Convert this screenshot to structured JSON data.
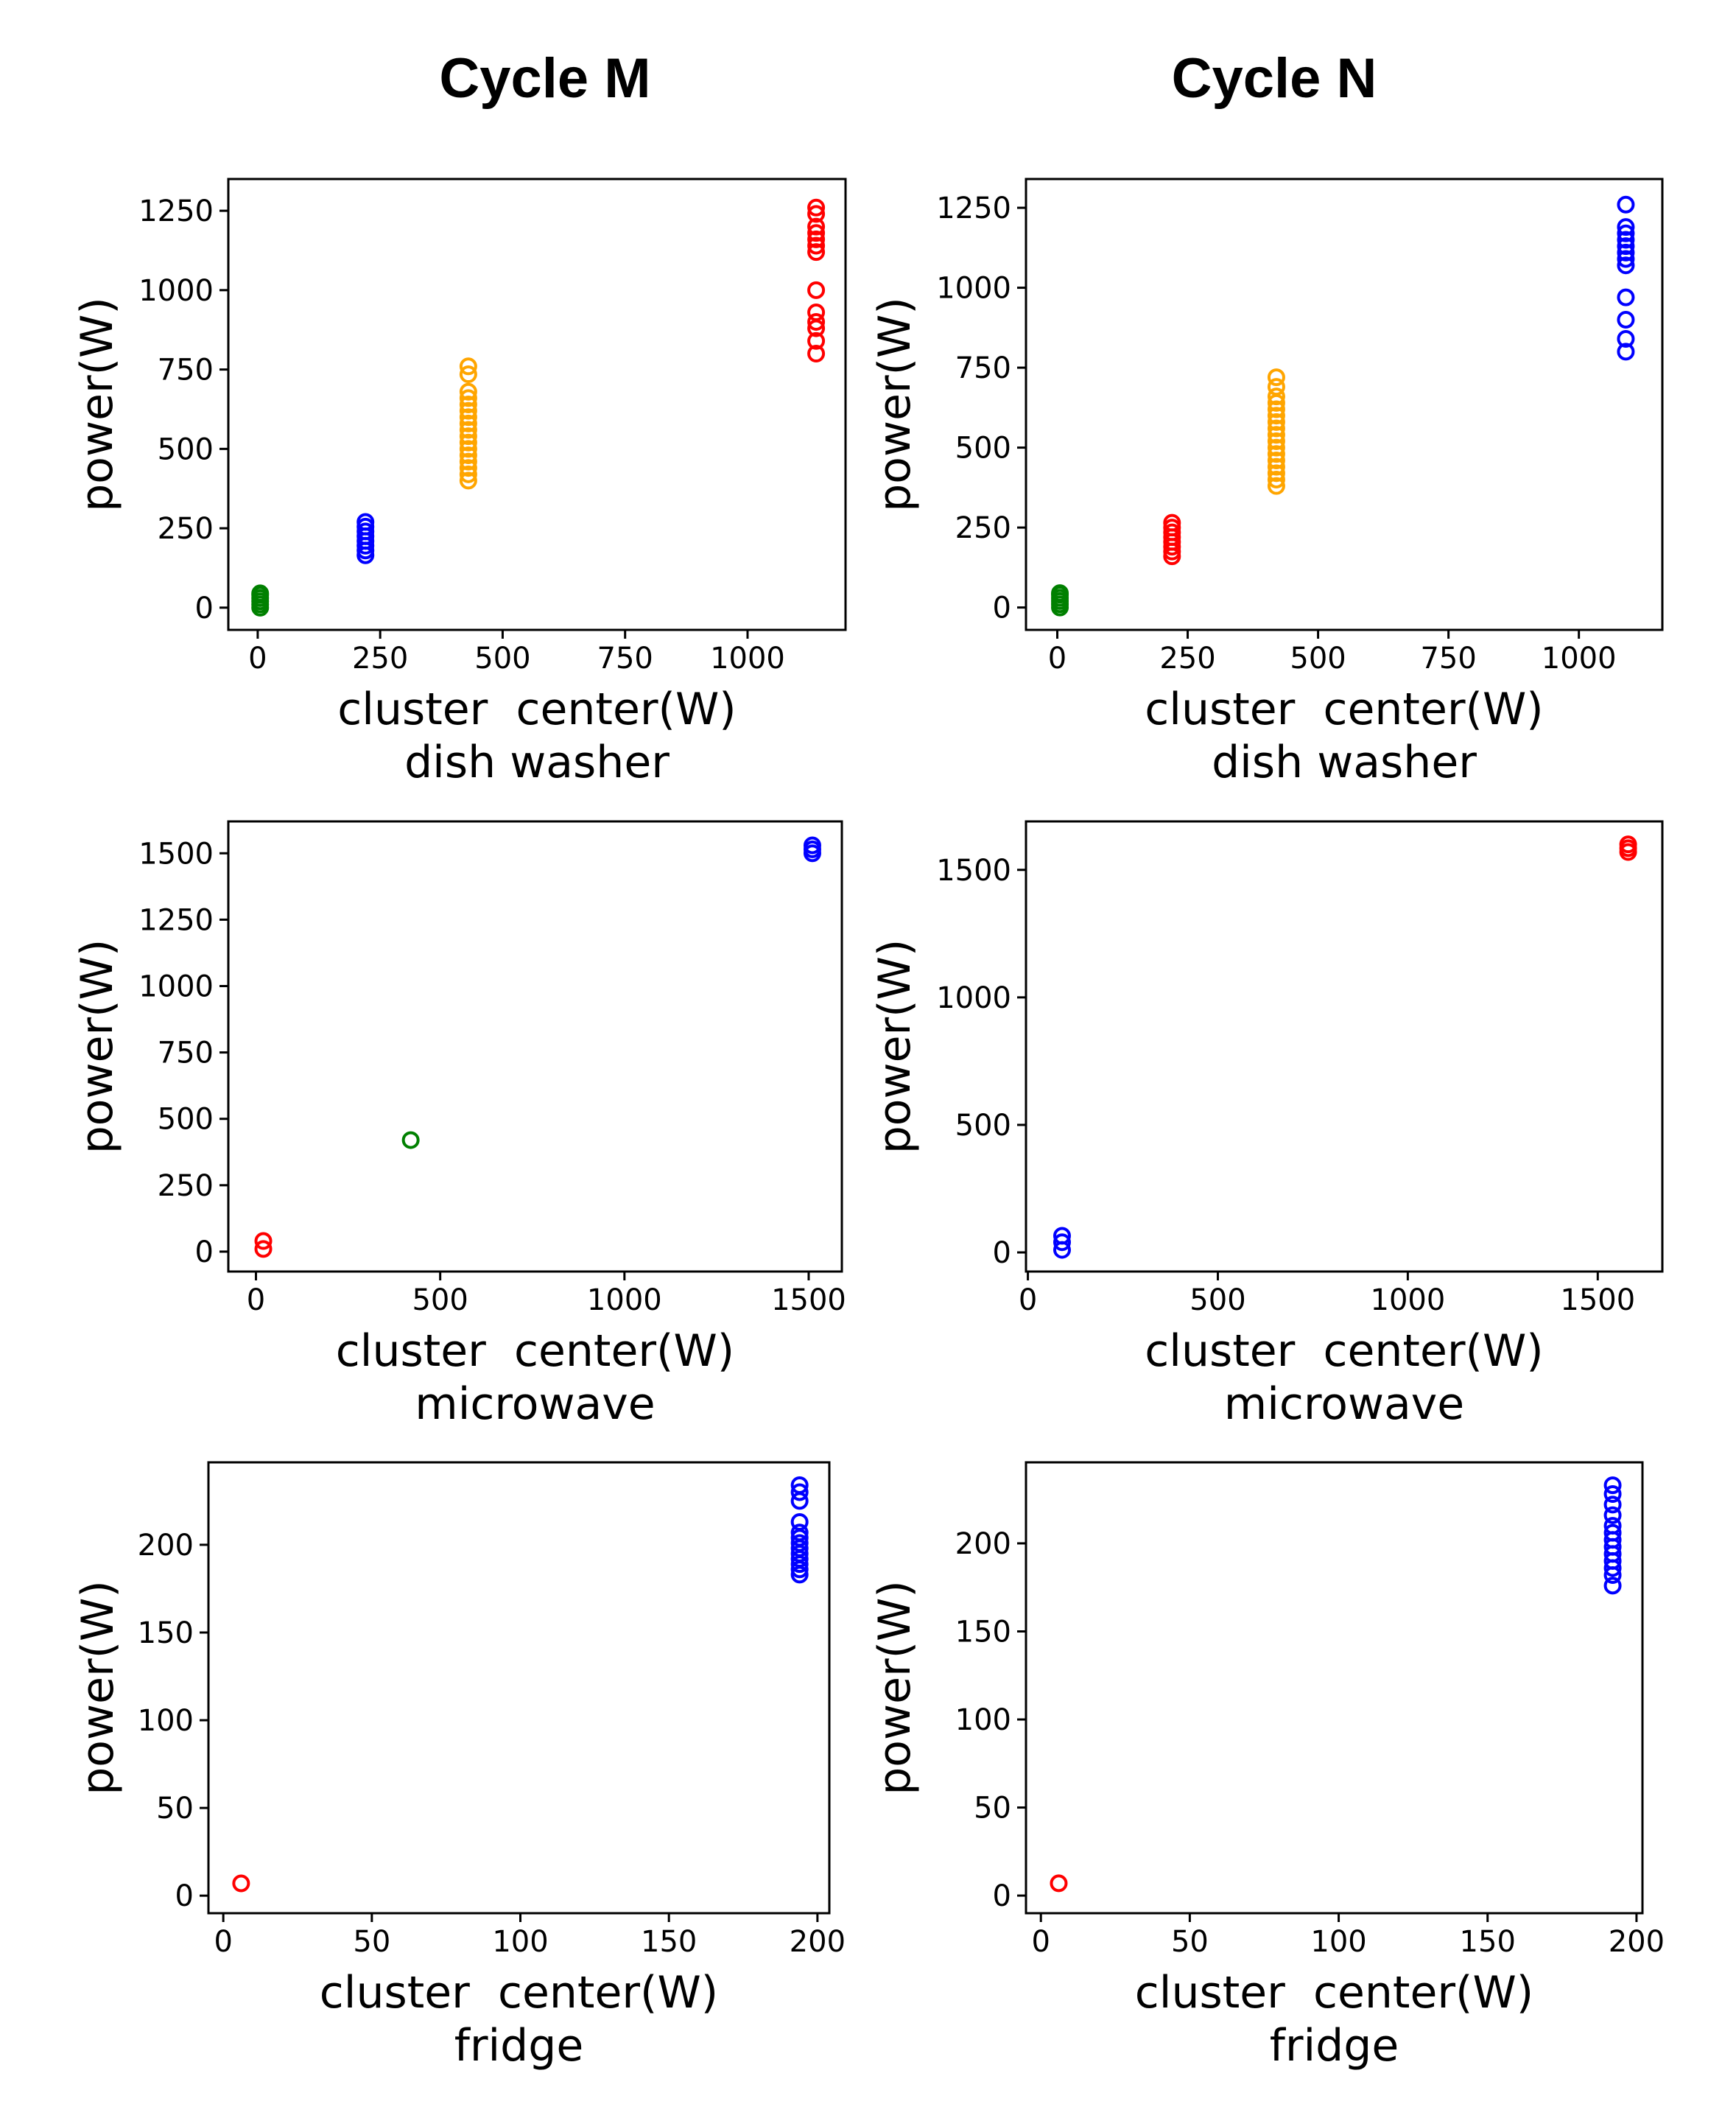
{
  "column_titles": [
    "Cycle M",
    "Cycle N"
  ],
  "colors": {
    "green": "#008000",
    "blue": "#0000ff",
    "orange": "#ffa500",
    "red": "#ff0000"
  },
  "chart_data": [
    {
      "type": "scatter",
      "column": "Cycle M",
      "xlabel": "cluster  center(W)",
      "subtitle": "dish washer",
      "ylabel": "power(W)",
      "xlim": [
        -60,
        1200
      ],
      "ylim": [
        -70,
        1350
      ],
      "xticks": [
        0,
        250,
        500,
        750,
        1000
      ],
      "yticks": [
        0,
        250,
        500,
        750,
        1000,
        1250
      ],
      "series": [
        {
          "color": "green",
          "points": [
            [
              5,
              0
            ],
            [
              5,
              10
            ],
            [
              5,
              20
            ],
            [
              5,
              30
            ],
            [
              5,
              40
            ],
            [
              5,
              45
            ]
          ]
        },
        {
          "color": "blue",
          "points": [
            [
              220,
              165
            ],
            [
              220,
              180
            ],
            [
              220,
              195
            ],
            [
              220,
              210
            ],
            [
              220,
              225
            ],
            [
              220,
              240
            ],
            [
              220,
              255
            ],
            [
              220,
              270
            ]
          ]
        },
        {
          "color": "orange",
          "points": [
            [
              430,
              400
            ],
            [
              430,
              420
            ],
            [
              430,
              440
            ],
            [
              430,
              460
            ],
            [
              430,
              480
            ],
            [
              430,
              500
            ],
            [
              430,
              520
            ],
            [
              430,
              540
            ],
            [
              430,
              560
            ],
            [
              430,
              580
            ],
            [
              430,
              600
            ],
            [
              430,
              620
            ],
            [
              430,
              640
            ],
            [
              430,
              660
            ],
            [
              430,
              680
            ],
            [
              430,
              735
            ],
            [
              430,
              760
            ]
          ]
        },
        {
          "color": "red",
          "points": [
            [
              1140,
              800
            ],
            [
              1140,
              840
            ],
            [
              1140,
              880
            ],
            [
              1140,
              900
            ],
            [
              1140,
              930
            ],
            [
              1140,
              1000
            ],
            [
              1140,
              1120
            ],
            [
              1140,
              1140
            ],
            [
              1140,
              1160
            ],
            [
              1140,
              1180
            ],
            [
              1140,
              1200
            ],
            [
              1140,
              1240
            ],
            [
              1140,
              1260
            ]
          ]
        }
      ]
    },
    {
      "type": "scatter",
      "column": "Cycle N",
      "xlabel": "cluster  center(W)",
      "subtitle": "dish washer",
      "ylabel": "power(W)",
      "xlim": [
        -60,
        1160
      ],
      "ylim": [
        -70,
        1340
      ],
      "xticks": [
        0,
        250,
        500,
        750,
        1000
      ],
      "yticks": [
        0,
        250,
        500,
        750,
        1000,
        1250
      ],
      "series": [
        {
          "color": "green",
          "points": [
            [
              5,
              0
            ],
            [
              5,
              10
            ],
            [
              5,
              20
            ],
            [
              5,
              30
            ],
            [
              5,
              40
            ],
            [
              5,
              45
            ]
          ]
        },
        {
          "color": "red",
          "points": [
            [
              220,
              160
            ],
            [
              220,
              175
            ],
            [
              220,
              190
            ],
            [
              220,
              205
            ],
            [
              220,
              220
            ],
            [
              220,
              235
            ],
            [
              220,
              250
            ],
            [
              220,
              265
            ]
          ]
        },
        {
          "color": "orange",
          "points": [
            [
              420,
              380
            ],
            [
              420,
              400
            ],
            [
              420,
              420
            ],
            [
              420,
              440
            ],
            [
              420,
              460
            ],
            [
              420,
              480
            ],
            [
              420,
              500
            ],
            [
              420,
              520
            ],
            [
              420,
              540
            ],
            [
              420,
              560
            ],
            [
              420,
              580
            ],
            [
              420,
              600
            ],
            [
              420,
              620
            ],
            [
              420,
              640
            ],
            [
              420,
              660
            ],
            [
              420,
              690
            ],
            [
              420,
              720
            ]
          ]
        },
        {
          "color": "blue",
          "points": [
            [
              1090,
              800
            ],
            [
              1090,
              840
            ],
            [
              1090,
              900
            ],
            [
              1090,
              970
            ],
            [
              1090,
              1070
            ],
            [
              1090,
              1090
            ],
            [
              1090,
              1110
            ],
            [
              1090,
              1130
            ],
            [
              1090,
              1150
            ],
            [
              1090,
              1170
            ],
            [
              1090,
              1190
            ],
            [
              1090,
              1260
            ]
          ]
        }
      ]
    },
    {
      "type": "scatter",
      "column": "Cycle M",
      "xlabel": "cluster  center(W)",
      "subtitle": "microwave",
      "ylabel": "power(W)",
      "xlim": [
        -75,
        1590
      ],
      "ylim": [
        -75,
        1620
      ],
      "xticks": [
        0,
        500,
        1000,
        1500
      ],
      "yticks": [
        0,
        250,
        500,
        750,
        1000,
        1250,
        1500
      ],
      "series": [
        {
          "color": "red",
          "points": [
            [
              20,
              10
            ],
            [
              20,
              40
            ]
          ]
        },
        {
          "color": "green",
          "points": [
            [
              420,
              420
            ]
          ]
        },
        {
          "color": "blue",
          "points": [
            [
              1510,
              1500
            ],
            [
              1510,
              1515
            ],
            [
              1510,
              1530
            ]
          ]
        }
      ]
    },
    {
      "type": "scatter",
      "column": "Cycle N",
      "xlabel": "cluster  center(W)",
      "subtitle": "microwave",
      "ylabel": "power(W)",
      "xlim": [
        -5,
        1670
      ],
      "ylim": [
        -75,
        1690
      ],
      "xticks": [
        0,
        500,
        1000,
        1500
      ],
      "yticks": [
        0,
        500,
        1000,
        1500
      ],
      "series": [
        {
          "color": "blue",
          "points": [
            [
              90,
              10
            ],
            [
              90,
              40
            ],
            [
              90,
              65
            ]
          ]
        },
        {
          "color": "red",
          "points": [
            [
              1580,
              1570
            ],
            [
              1580,
              1585
            ],
            [
              1580,
              1600
            ]
          ]
        }
      ]
    },
    {
      "type": "scatter",
      "column": "Cycle M",
      "xlabel": "cluster  center(W)",
      "subtitle": "fridge",
      "ylabel": "power(W)",
      "xlim": [
        -5,
        204
      ],
      "ylim": [
        -10,
        247
      ],
      "xticks": [
        0,
        50,
        100,
        150,
        200
      ],
      "yticks": [
        0,
        50,
        100,
        150,
        200
      ],
      "series": [
        {
          "color": "red",
          "points": [
            [
              6,
              7
            ]
          ]
        },
        {
          "color": "blue",
          "points": [
            [
              194,
              183
            ],
            [
              194,
              186
            ],
            [
              194,
              189
            ],
            [
              194,
              192
            ],
            [
              194,
              195
            ],
            [
              194,
              198
            ],
            [
              194,
              201
            ],
            [
              194,
              204
            ],
            [
              194,
              207
            ],
            [
              194,
              213
            ],
            [
              194,
              225
            ],
            [
              194,
              230
            ],
            [
              194,
              234
            ]
          ]
        }
      ]
    },
    {
      "type": "scatter",
      "column": "Cycle N",
      "xlabel": "cluster  center(W)",
      "subtitle": "fridge",
      "ylabel": "power(W)",
      "xlim": [
        -5,
        202
      ],
      "ylim": [
        -10,
        246
      ],
      "xticks": [
        0,
        50,
        100,
        150,
        200
      ],
      "yticks": [
        0,
        50,
        100,
        150,
        200
      ],
      "series": [
        {
          "color": "red",
          "points": [
            [
              6,
              7
            ]
          ]
        },
        {
          "color": "blue",
          "points": [
            [
              192,
              176
            ],
            [
              192,
              182
            ],
            [
              192,
              186
            ],
            [
              192,
              190
            ],
            [
              192,
              194
            ],
            [
              192,
              198
            ],
            [
              192,
              202
            ],
            [
              192,
              206
            ],
            [
              192,
              210
            ],
            [
              192,
              216
            ],
            [
              192,
              222
            ],
            [
              192,
              228
            ],
            [
              192,
              233
            ]
          ]
        }
      ]
    }
  ]
}
